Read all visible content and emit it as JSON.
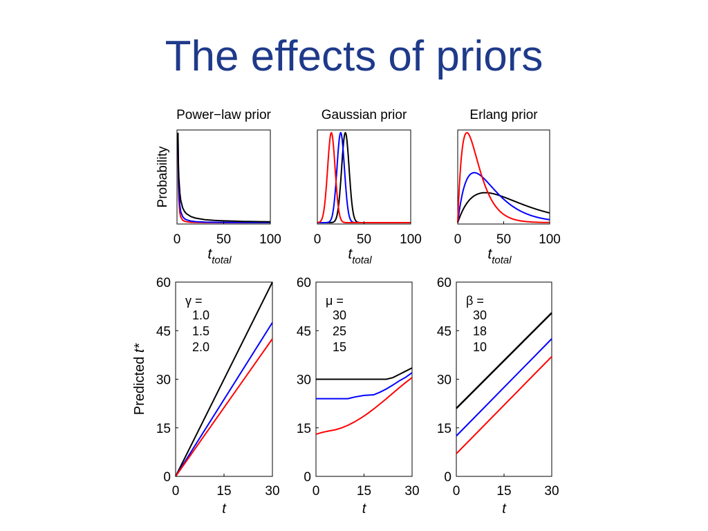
{
  "slide": {
    "title": "The effects of priors"
  },
  "colors": {
    "title": "#1f3a8a",
    "black": "#000000",
    "blue": "#0000ff",
    "red": "#ff0000"
  },
  "chart_data": [
    {
      "type": "line",
      "title": "Power−law prior",
      "xlabel_main": "t",
      "xlabel_sub": "total",
      "ylabel": "Probability",
      "xlim": [
        0,
        100
      ],
      "xticks": [
        "0",
        "50",
        "100"
      ],
      "series": [
        {
          "color": "black",
          "x": [
            1,
            1.5,
            2,
            3,
            4,
            6,
            8,
            10,
            15,
            20,
            30,
            40,
            50,
            60,
            70,
            80,
            90,
            100
          ],
          "y": [
            1.0,
            0.667,
            0.5,
            0.333,
            0.25,
            0.167,
            0.125,
            0.1,
            0.067,
            0.05,
            0.033,
            0.025,
            0.02,
            0.017,
            0.014,
            0.0125,
            0.011,
            0.01
          ]
        },
        {
          "color": "blue",
          "x": [
            1,
            1.5,
            2,
            3,
            4,
            6,
            8,
            10,
            15,
            20,
            30,
            40,
            50,
            60,
            70,
            80,
            90,
            100
          ],
          "y": [
            1.0,
            0.544,
            0.354,
            0.192,
            0.125,
            0.068,
            0.044,
            0.032,
            0.017,
            0.011,
            0.006,
            0.004,
            0.003,
            0.002,
            0.002,
            0.001,
            0.001,
            0.001
          ]
        },
        {
          "color": "red",
          "x": [
            1,
            1.5,
            2,
            3,
            4,
            6,
            8,
            10,
            15,
            20,
            30,
            40,
            50,
            60,
            70,
            80,
            90,
            100
          ],
          "y": [
            1.0,
            0.444,
            0.25,
            0.111,
            0.063,
            0.028,
            0.016,
            0.01,
            0.004,
            0.003,
            0.001,
            0.001,
            0.0,
            0.0,
            0.0,
            0.0,
            0.0,
            0.0
          ]
        }
      ]
    },
    {
      "type": "line",
      "title": "Gaussian prior",
      "xlabel_main": "t",
      "xlabel_sub": "total",
      "xlim": [
        0,
        100
      ],
      "xticks": [
        "0",
        "50",
        "100"
      ],
      "series": [
        {
          "color": "black",
          "mu": 30,
          "sigma": 4
        },
        {
          "color": "blue",
          "mu": 25,
          "sigma": 4
        },
        {
          "color": "red",
          "mu": 15,
          "sigma": 4
        }
      ]
    },
    {
      "type": "line",
      "title": "Erlang prior",
      "xlabel_main": "t",
      "xlabel_sub": "total",
      "xlim": [
        0,
        100
      ],
      "xticks": [
        "0",
        "50",
        "100"
      ],
      "series": [
        {
          "color": "black",
          "beta": 30
        },
        {
          "color": "blue",
          "beta": 18
        },
        {
          "color": "red",
          "beta": 10
        }
      ]
    },
    {
      "type": "line",
      "xlabel": "t",
      "ylabel_main": "Predicted ",
      "ylabel_italic": "t*",
      "xlim": [
        0,
        30
      ],
      "ylim": [
        0,
        60
      ],
      "xticks": [
        "0",
        "15",
        "30"
      ],
      "yticks": [
        "0",
        "15",
        "30",
        "45",
        "60"
      ],
      "legend_title": "γ =",
      "series": [
        {
          "name": "1.0",
          "color": "black",
          "x": [
            0,
            30
          ],
          "y": [
            0,
            60
          ]
        },
        {
          "name": "1.5",
          "color": "blue",
          "x": [
            0,
            30
          ],
          "y": [
            0,
            47.5
          ]
        },
        {
          "name": "2.0",
          "color": "red",
          "x": [
            0,
            30
          ],
          "y": [
            0,
            42.5
          ]
        }
      ]
    },
    {
      "type": "line",
      "xlabel": "t",
      "xlim": [
        0,
        30
      ],
      "ylim": [
        0,
        60
      ],
      "xticks": [
        "0",
        "15",
        "30"
      ],
      "yticks": [
        "0",
        "15",
        "30",
        "45",
        "60"
      ],
      "legend_title": "μ =",
      "series": [
        {
          "name": "30",
          "color": "black",
          "x": [
            0,
            5,
            10,
            15,
            20,
            22,
            24,
            26,
            28,
            30
          ],
          "y": [
            30,
            30,
            30,
            30,
            30,
            30,
            30.5,
            31.5,
            32.5,
            33.5
          ]
        },
        {
          "name": "25",
          "color": "blue",
          "x": [
            0,
            5,
            8,
            10,
            12,
            15,
            18,
            20,
            22,
            24,
            26,
            28,
            30
          ],
          "y": [
            24,
            24,
            24,
            24,
            24.5,
            25,
            25.2,
            26,
            27,
            28.2,
            29.5,
            30.6,
            32
          ]
        },
        {
          "name": "15",
          "color": "red",
          "x": [
            0,
            2,
            4,
            6,
            8,
            10,
            12,
            14,
            16,
            18,
            20,
            22,
            24,
            26,
            28,
            30
          ],
          "y": [
            13,
            13.6,
            14,
            14.4,
            15,
            15.8,
            16.8,
            18,
            19.3,
            20.8,
            22.4,
            24,
            25.7,
            27.4,
            29,
            30.5
          ]
        }
      ]
    },
    {
      "type": "line",
      "xlabel": "t",
      "xlim": [
        0,
        30
      ],
      "ylim": [
        0,
        60
      ],
      "xticks": [
        "0",
        "15",
        "30"
      ],
      "yticks": [
        "0",
        "15",
        "30",
        "45",
        "60"
      ],
      "legend_title": "β =",
      "series": [
        {
          "name": "30",
          "color": "black",
          "x": [
            0,
            30
          ],
          "y": [
            21,
            50.5
          ]
        },
        {
          "name": "18",
          "color": "blue",
          "x": [
            0,
            30
          ],
          "y": [
            12.5,
            42.5
          ]
        },
        {
          "name": "10",
          "color": "red",
          "x": [
            0,
            30
          ],
          "y": [
            7,
            37
          ]
        }
      ]
    }
  ]
}
